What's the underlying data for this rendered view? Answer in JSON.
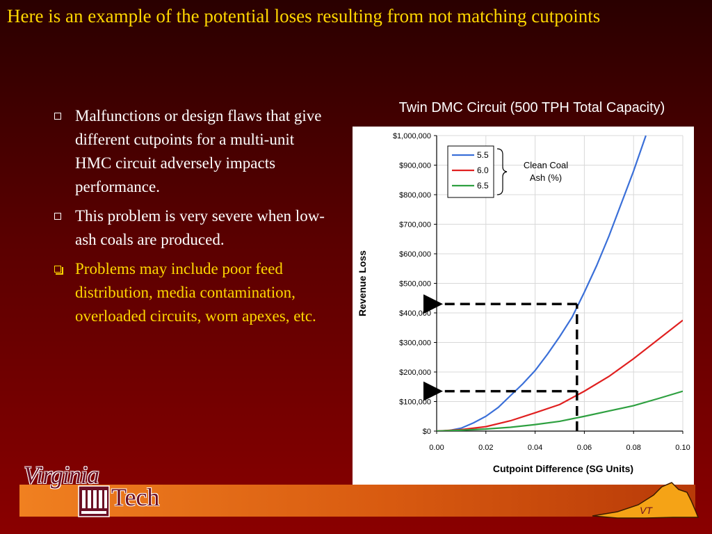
{
  "slide": {
    "title": "Here is an example of the potential loses resulting from not matching cutpoints",
    "bullets": [
      {
        "text": "Malfunctions or design flaws that give different cutpoints for a multi-unit HMC circuit adversely  impacts performance.",
        "style": "white"
      },
      {
        "text": "This problem is very severe when low-ash coals are produced.",
        "style": "white"
      },
      {
        "text": "Problems may include poor feed distribution, media contamination, overloaded circuits, worn apexes, etc.",
        "style": "yellow"
      }
    ]
  },
  "chart_title": "Twin DMC Circuit (500 TPH Total Capacity)",
  "chart_data": {
    "type": "line",
    "title": "Twin DMC Circuit (500 TPH Total Capacity)",
    "xlabel": "Cutpoint Difference (SG Units)",
    "ylabel": "Revenue Loss",
    "xlim": [
      0,
      0.1
    ],
    "ylim": [
      0,
      1000000
    ],
    "x_ticks": [
      "0.00",
      "0.02",
      "0.04",
      "0.06",
      "0.08",
      "0.10"
    ],
    "y_ticks": [
      "$0",
      "$100,000",
      "$200,000",
      "$300,000",
      "$400,000",
      "$500,000",
      "$600,000",
      "$700,000",
      "$800,000",
      "$900,000",
      "$1,000,000"
    ],
    "legend_title": "Clean Coal\nAsh (%)",
    "legend_position": "top-left",
    "grid": true,
    "series": [
      {
        "name": "5.5",
        "color": "#3a6fd8",
        "x": [
          0,
          0.005,
          0.01,
          0.015,
          0.02,
          0.025,
          0.03,
          0.035,
          0.04,
          0.045,
          0.05,
          0.055,
          0.06,
          0.065,
          0.07,
          0.075,
          0.08,
          0.085
        ],
        "y": [
          0,
          2000,
          10000,
          28000,
          50000,
          80000,
          120000,
          160000,
          205000,
          260000,
          320000,
          385000,
          470000,
          560000,
          660000,
          770000,
          880000,
          1000000
        ]
      },
      {
        "name": "6.0",
        "color": "#e02020",
        "x": [
          0,
          0.01,
          0.02,
          0.03,
          0.04,
          0.05,
          0.06,
          0.07,
          0.08,
          0.09,
          0.1
        ],
        "y": [
          0,
          5000,
          15000,
          35000,
          62000,
          90000,
          135000,
          185000,
          245000,
          310000,
          375000
        ]
      },
      {
        "name": "6.5",
        "color": "#2ea040",
        "x": [
          0,
          0.01,
          0.02,
          0.03,
          0.04,
          0.05,
          0.06,
          0.07,
          0.08,
          0.09,
          0.1
        ],
        "y": [
          0,
          3000,
          7000,
          13000,
          22000,
          33000,
          50000,
          68000,
          86000,
          110000,
          135000
        ]
      }
    ],
    "annotations": [
      {
        "type": "dashed-guide",
        "x": 0.057,
        "y": 430000,
        "arrow_to": "y-axis"
      },
      {
        "type": "dashed-guide",
        "x": 0.057,
        "y": 135000,
        "arrow_to": "y-axis"
      }
    ]
  },
  "footer": {
    "logo_word1": "Virginia",
    "logo_word2": "Tech",
    "state_label": "VT"
  },
  "colors": {
    "title": "#ffd700",
    "background_top": "#2a0000",
    "background_bottom": "#8a0000",
    "footer_bar": "#e06a18",
    "maroon": "#6b0f24"
  }
}
